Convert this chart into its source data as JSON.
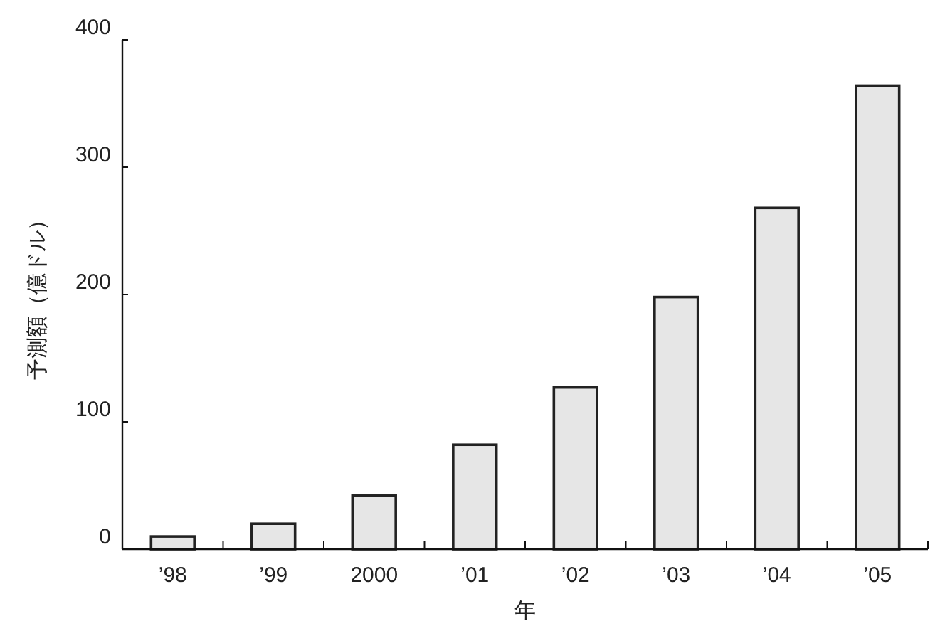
{
  "chart_data": {
    "type": "bar",
    "xlabel": "年",
    "ylabel": "予測額（億ドル）",
    "categories": [
      "’98",
      "’99",
      "2000",
      "’01",
      "’02",
      "’03",
      "’04",
      "’05"
    ],
    "values": [
      10,
      20,
      42,
      82,
      127,
      198,
      268,
      364
    ],
    "color": "#e6e6e6",
    "ylim": [
      0,
      400
    ],
    "yticks": [
      0,
      100,
      200,
      300,
      400
    ],
    "grid": false
  }
}
